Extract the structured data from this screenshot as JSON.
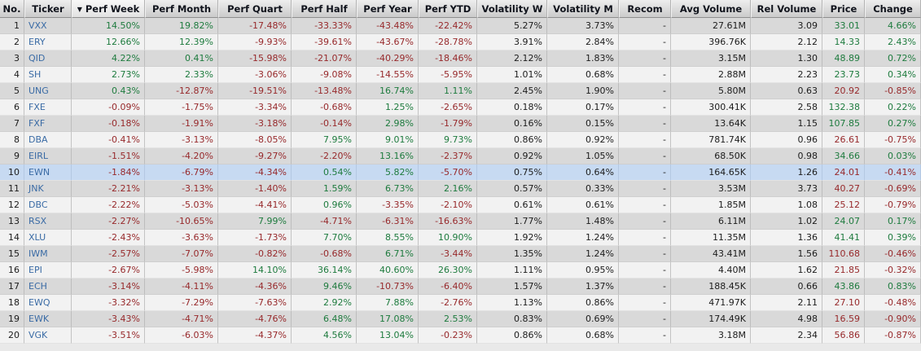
{
  "table": {
    "sort_indicator": "▼",
    "sorted_column": "perf_week",
    "highlighted_row_ticker": "EWN",
    "recom_empty": "-",
    "colors": {
      "positive": "#1e7b3e",
      "negative": "#97292b",
      "ticker_link": "#3a6ba5",
      "highlight_row_bg": "#c7daf2",
      "row_odd_bg": "#d9d9d9",
      "row_even_bg": "#f2f2f2"
    },
    "columns": [
      {
        "key": "no",
        "label": "No.",
        "type": "rowno"
      },
      {
        "key": "ticker",
        "label": "Ticker",
        "type": "ticker"
      },
      {
        "key": "perf_week",
        "label": "Perf Week",
        "type": "signed"
      },
      {
        "key": "perf_month",
        "label": "Perf Month",
        "type": "signed"
      },
      {
        "key": "perf_quart",
        "label": "Perf Quart",
        "type": "signed"
      },
      {
        "key": "perf_half",
        "label": "Perf Half",
        "type": "signed"
      },
      {
        "key": "perf_year",
        "label": "Perf Year",
        "type": "signed"
      },
      {
        "key": "perf_ytd",
        "label": "Perf YTD",
        "type": "signed"
      },
      {
        "key": "volatility_w",
        "label": "Volatility W",
        "type": "neutral"
      },
      {
        "key": "volatility_m",
        "label": "Volatility M",
        "type": "neutral"
      },
      {
        "key": "recom",
        "label": "Recom",
        "type": "neutral"
      },
      {
        "key": "avg_volume",
        "label": "Avg Volume",
        "type": "neutral"
      },
      {
        "key": "rel_volume",
        "label": "Rel Volume",
        "type": "neutral"
      },
      {
        "key": "price",
        "label": "Price",
        "type": "price"
      },
      {
        "key": "change",
        "label": "Change",
        "type": "signed"
      }
    ],
    "rows": [
      {
        "no": "1",
        "ticker": "VXX",
        "perf_week": "14.50%",
        "perf_month": "19.82%",
        "perf_quart": "-17.48%",
        "perf_half": "-33.33%",
        "perf_year": "-43.48%",
        "perf_ytd": "-22.42%",
        "volatility_w": "5.27%",
        "volatility_m": "3.73%",
        "recom": "-",
        "avg_volume": "27.61M",
        "rel_volume": "3.09",
        "price": "33.01",
        "change": "4.66%"
      },
      {
        "no": "2",
        "ticker": "ERY",
        "perf_week": "12.66%",
        "perf_month": "12.39%",
        "perf_quart": "-9.93%",
        "perf_half": "-39.61%",
        "perf_year": "-43.67%",
        "perf_ytd": "-28.78%",
        "volatility_w": "3.91%",
        "volatility_m": "2.84%",
        "recom": "-",
        "avg_volume": "396.76K",
        "rel_volume": "2.12",
        "price": "14.33",
        "change": "2.43%"
      },
      {
        "no": "3",
        "ticker": "QID",
        "perf_week": "4.22%",
        "perf_month": "0.41%",
        "perf_quart": "-15.98%",
        "perf_half": "-21.07%",
        "perf_year": "-40.29%",
        "perf_ytd": "-18.46%",
        "volatility_w": "2.12%",
        "volatility_m": "1.83%",
        "recom": "-",
        "avg_volume": "3.15M",
        "rel_volume": "1.30",
        "price": "48.89",
        "change": "0.72%"
      },
      {
        "no": "4",
        "ticker": "SH",
        "perf_week": "2.73%",
        "perf_month": "2.33%",
        "perf_quart": "-3.06%",
        "perf_half": "-9.08%",
        "perf_year": "-14.55%",
        "perf_ytd": "-5.95%",
        "volatility_w": "1.01%",
        "volatility_m": "0.68%",
        "recom": "-",
        "avg_volume": "2.88M",
        "rel_volume": "2.23",
        "price": "23.73",
        "change": "0.34%"
      },
      {
        "no": "5",
        "ticker": "UNG",
        "perf_week": "0.43%",
        "perf_month": "-12.87%",
        "perf_quart": "-19.51%",
        "perf_half": "-13.48%",
        "perf_year": "16.74%",
        "perf_ytd": "1.11%",
        "volatility_w": "2.45%",
        "volatility_m": "1.90%",
        "recom": "-",
        "avg_volume": "5.80M",
        "rel_volume": "0.63",
        "price": "20.92",
        "change": "-0.85%"
      },
      {
        "no": "6",
        "ticker": "FXE",
        "perf_week": "-0.09%",
        "perf_month": "-1.75%",
        "perf_quart": "-3.34%",
        "perf_half": "-0.68%",
        "perf_year": "1.25%",
        "perf_ytd": "-2.65%",
        "volatility_w": "0.18%",
        "volatility_m": "0.17%",
        "recom": "-",
        "avg_volume": "300.41K",
        "rel_volume": "2.58",
        "price": "132.38",
        "change": "0.22%"
      },
      {
        "no": "7",
        "ticker": "FXF",
        "perf_week": "-0.18%",
        "perf_month": "-1.91%",
        "perf_quart": "-3.18%",
        "perf_half": "-0.14%",
        "perf_year": "2.98%",
        "perf_ytd": "-1.79%",
        "volatility_w": "0.16%",
        "volatility_m": "0.15%",
        "recom": "-",
        "avg_volume": "13.64K",
        "rel_volume": "1.15",
        "price": "107.85",
        "change": "0.27%"
      },
      {
        "no": "8",
        "ticker": "DBA",
        "perf_week": "-0.41%",
        "perf_month": "-3.13%",
        "perf_quart": "-8.05%",
        "perf_half": "7.95%",
        "perf_year": "9.01%",
        "perf_ytd": "9.73%",
        "volatility_w": "0.86%",
        "volatility_m": "0.92%",
        "recom": "-",
        "avg_volume": "781.74K",
        "rel_volume": "0.96",
        "price": "26.61",
        "change": "-0.75%"
      },
      {
        "no": "9",
        "ticker": "EIRL",
        "perf_week": "-1.51%",
        "perf_month": "-4.20%",
        "perf_quart": "-9.27%",
        "perf_half": "-2.20%",
        "perf_year": "13.16%",
        "perf_ytd": "-2.37%",
        "volatility_w": "0.92%",
        "volatility_m": "1.05%",
        "recom": "-",
        "avg_volume": "68.50K",
        "rel_volume": "0.98",
        "price": "34.66",
        "change": "0.03%"
      },
      {
        "no": "10",
        "ticker": "EWN",
        "perf_week": "-1.84%",
        "perf_month": "-6.79%",
        "perf_quart": "-4.34%",
        "perf_half": "0.54%",
        "perf_year": "5.82%",
        "perf_ytd": "-5.70%",
        "volatility_w": "0.75%",
        "volatility_m": "0.64%",
        "recom": "-",
        "avg_volume": "164.65K",
        "rel_volume": "1.26",
        "price": "24.01",
        "change": "-0.41%"
      },
      {
        "no": "11",
        "ticker": "JNK",
        "perf_week": "-2.21%",
        "perf_month": "-3.13%",
        "perf_quart": "-1.40%",
        "perf_half": "1.59%",
        "perf_year": "6.73%",
        "perf_ytd": "2.16%",
        "volatility_w": "0.57%",
        "volatility_m": "0.33%",
        "recom": "-",
        "avg_volume": "3.53M",
        "rel_volume": "3.73",
        "price": "40.27",
        "change": "-0.69%"
      },
      {
        "no": "12",
        "ticker": "DBC",
        "perf_week": "-2.22%",
        "perf_month": "-5.03%",
        "perf_quart": "-4.41%",
        "perf_half": "0.96%",
        "perf_year": "-3.35%",
        "perf_ytd": "-2.10%",
        "volatility_w": "0.61%",
        "volatility_m": "0.61%",
        "recom": "-",
        "avg_volume": "1.85M",
        "rel_volume": "1.08",
        "price": "25.12",
        "change": "-0.79%"
      },
      {
        "no": "13",
        "ticker": "RSX",
        "perf_week": "-2.27%",
        "perf_month": "-10.65%",
        "perf_quart": "7.99%",
        "perf_half": "-4.71%",
        "perf_year": "-6.31%",
        "perf_ytd": "-16.63%",
        "volatility_w": "1.77%",
        "volatility_m": "1.48%",
        "recom": "-",
        "avg_volume": "6.11M",
        "rel_volume": "1.02",
        "price": "24.07",
        "change": "0.17%"
      },
      {
        "no": "14",
        "ticker": "XLU",
        "perf_week": "-2.43%",
        "perf_month": "-3.63%",
        "perf_quart": "-1.73%",
        "perf_half": "7.70%",
        "perf_year": "8.55%",
        "perf_ytd": "10.90%",
        "volatility_w": "1.92%",
        "volatility_m": "1.24%",
        "recom": "-",
        "avg_volume": "11.35M",
        "rel_volume": "1.36",
        "price": "41.41",
        "change": "0.39%"
      },
      {
        "no": "15",
        "ticker": "IWM",
        "perf_week": "-2.57%",
        "perf_month": "-7.07%",
        "perf_quart": "-0.82%",
        "perf_half": "-0.68%",
        "perf_year": "6.71%",
        "perf_ytd": "-3.44%",
        "volatility_w": "1.35%",
        "volatility_m": "1.24%",
        "recom": "-",
        "avg_volume": "43.41M",
        "rel_volume": "1.56",
        "price": "110.68",
        "change": "-0.46%"
      },
      {
        "no": "16",
        "ticker": "EPI",
        "perf_week": "-2.67%",
        "perf_month": "-5.98%",
        "perf_quart": "14.10%",
        "perf_half": "36.14%",
        "perf_year": "40.60%",
        "perf_ytd": "26.30%",
        "volatility_w": "1.11%",
        "volatility_m": "0.95%",
        "recom": "-",
        "avg_volume": "4.40M",
        "rel_volume": "1.62",
        "price": "21.85",
        "change": "-0.32%"
      },
      {
        "no": "17",
        "ticker": "ECH",
        "perf_week": "-3.14%",
        "perf_month": "-4.11%",
        "perf_quart": "-4.36%",
        "perf_half": "9.46%",
        "perf_year": "-10.73%",
        "perf_ytd": "-6.40%",
        "volatility_w": "1.57%",
        "volatility_m": "1.37%",
        "recom": "-",
        "avg_volume": "188.45K",
        "rel_volume": "0.66",
        "price": "43.86",
        "change": "0.83%"
      },
      {
        "no": "18",
        "ticker": "EWQ",
        "perf_week": "-3.32%",
        "perf_month": "-7.29%",
        "perf_quart": "-7.63%",
        "perf_half": "2.92%",
        "perf_year": "7.88%",
        "perf_ytd": "-2.76%",
        "volatility_w": "1.13%",
        "volatility_m": "0.86%",
        "recom": "-",
        "avg_volume": "471.97K",
        "rel_volume": "2.11",
        "price": "27.10",
        "change": "-0.48%"
      },
      {
        "no": "19",
        "ticker": "EWK",
        "perf_week": "-3.43%",
        "perf_month": "-4.71%",
        "perf_quart": "-4.76%",
        "perf_half": "6.48%",
        "perf_year": "17.08%",
        "perf_ytd": "2.53%",
        "volatility_w": "0.83%",
        "volatility_m": "0.69%",
        "recom": "-",
        "avg_volume": "174.49K",
        "rel_volume": "4.98",
        "price": "16.59",
        "change": "-0.90%"
      },
      {
        "no": "20",
        "ticker": "VGK",
        "perf_week": "-3.51%",
        "perf_month": "-6.03%",
        "perf_quart": "-4.37%",
        "perf_half": "4.56%",
        "perf_year": "13.04%",
        "perf_ytd": "-0.23%",
        "volatility_w": "0.86%",
        "volatility_m": "0.68%",
        "recom": "-",
        "avg_volume": "3.18M",
        "rel_volume": "2.34",
        "price": "56.86",
        "change": "-0.87%"
      }
    ]
  }
}
